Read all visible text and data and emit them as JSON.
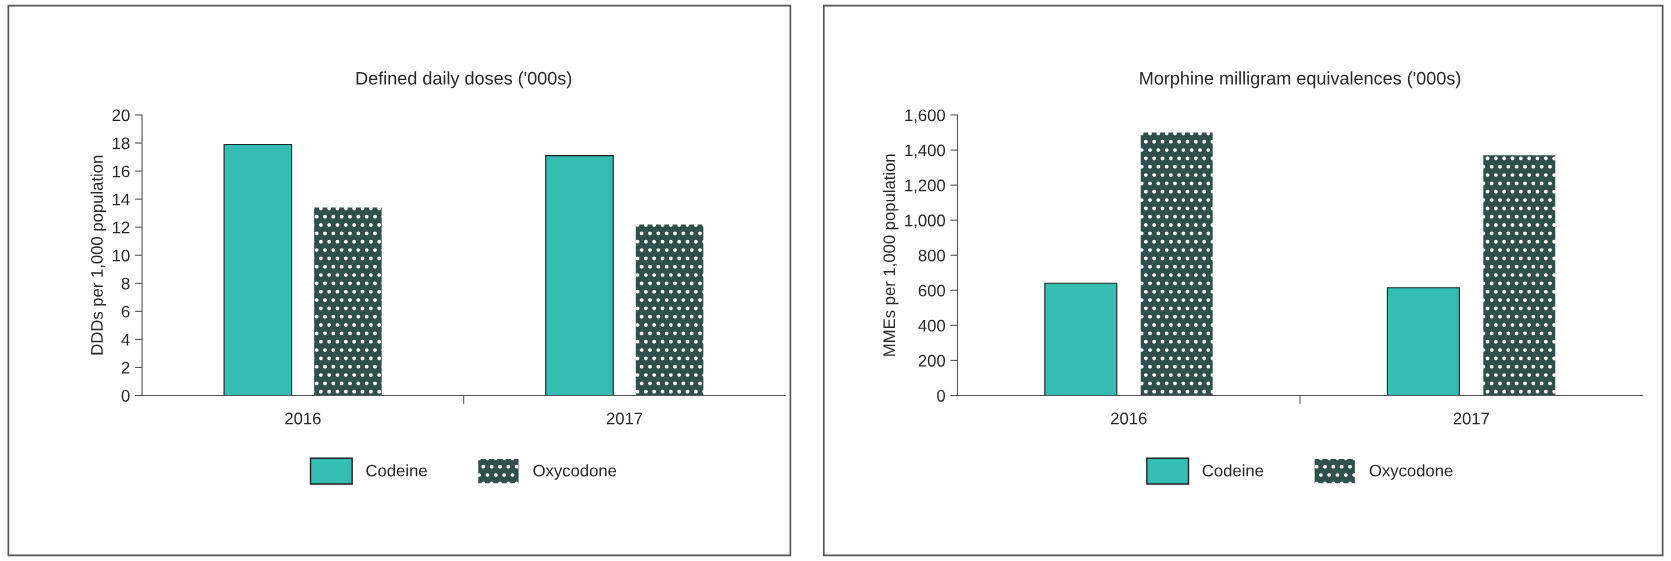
{
  "chart_data": [
    {
      "type": "bar",
      "title": "Defined daily doses ('000s)",
      "ylabel": "DDDs per 1,000 population",
      "categories": [
        "2016",
        "2017"
      ],
      "series": [
        {
          "name": "Codeine",
          "color": "#33bdb3",
          "values": [
            17.9,
            17.1
          ]
        },
        {
          "name": "Oxycodone",
          "color": "#2f4f4c",
          "values": [
            13.4,
            12.2
          ]
        }
      ],
      "ylim": [
        0,
        20
      ],
      "yticks": [
        0,
        2,
        4,
        6,
        8,
        10,
        12,
        14,
        16,
        18,
        20
      ],
      "legend": "bottom",
      "grid": false
    },
    {
      "type": "bar",
      "title": "Morphine milligram equivalences ('000s)",
      "ylabel": "MMEs per 1,000 population",
      "categories": [
        "2016",
        "2017"
      ],
      "series": [
        {
          "name": "Codeine",
          "color": "#33bdb3",
          "values": [
            640,
            615
          ]
        },
        {
          "name": "Oxycodone",
          "color": "#2f4f4c",
          "values": [
            1500,
            1370
          ]
        }
      ],
      "ylim": [
        0,
        1600
      ],
      "yticks": [
        {
          "value": 0,
          "label": "0"
        },
        {
          "value": 200,
          "label": "200"
        },
        {
          "value": 400,
          "label": "400"
        },
        {
          "value": 600,
          "label": "600"
        },
        {
          "value": 800,
          "label": "800"
        },
        {
          "value": 1000,
          "label": "1,000"
        },
        {
          "value": 1200,
          "label": "1,200"
        },
        {
          "value": 1400,
          "label": "1,400"
        },
        {
          "value": 1600,
          "label": "1,600"
        }
      ],
      "legend": "bottom",
      "grid": false
    }
  ]
}
